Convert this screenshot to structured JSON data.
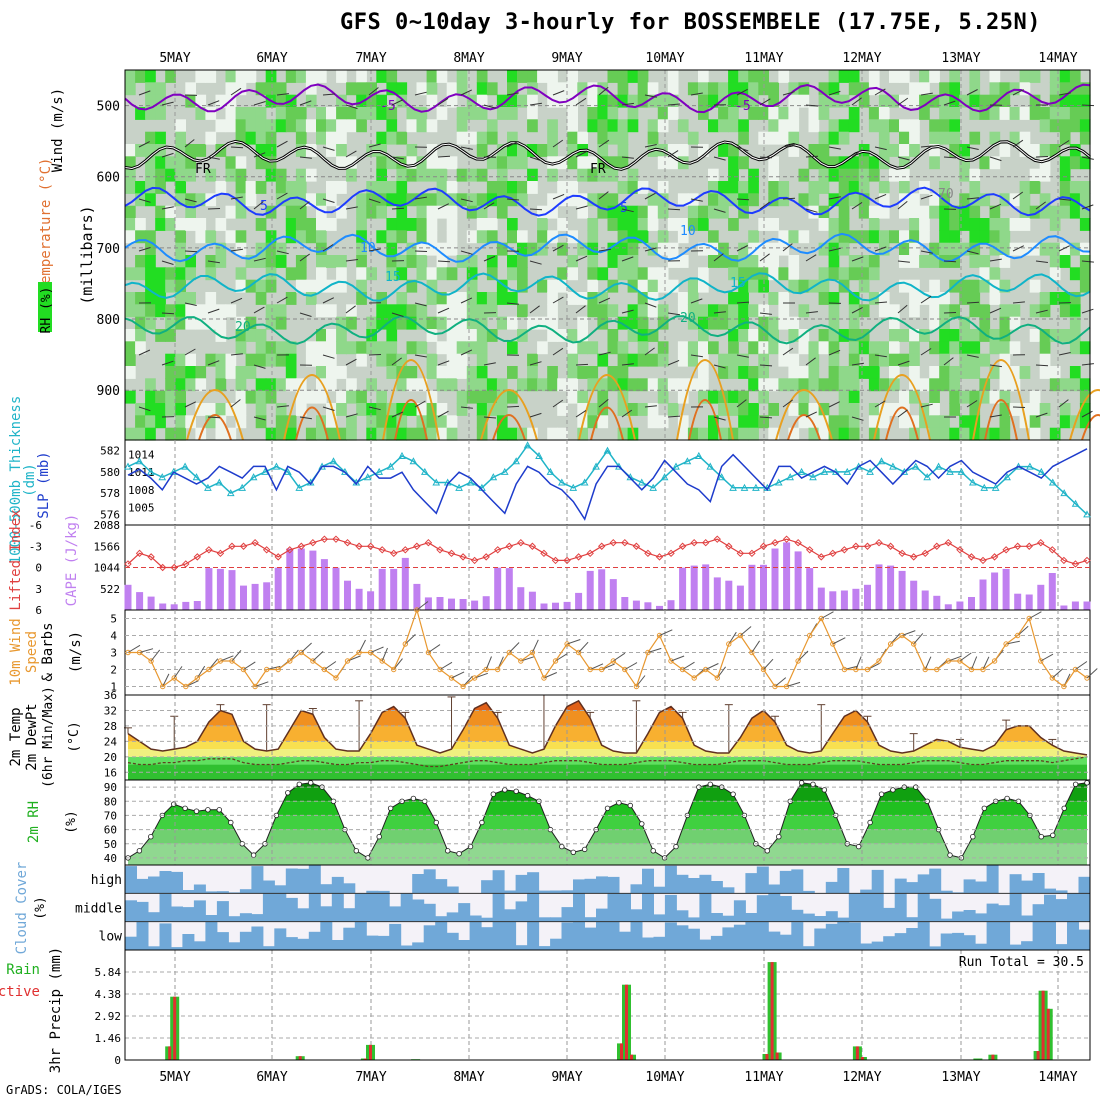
{
  "page": {
    "title": "GFS 0~10day 3-hourly for BOSSEMBELE (17.75E, 5.25N)",
    "credit": "GrADS: COLA/IGES"
  },
  "chart_data": [
    {
      "type": "heatmap",
      "panel": "upper-air",
      "x_dates": [
        "5MAY",
        "6MAY",
        "7MAY",
        "8MAY",
        "9MAY",
        "10MAY",
        "11MAY",
        "12MAY",
        "13MAY",
        "14MAY"
      ],
      "ylabel": "(millibars)",
      "yticks": [
        "500",
        "600",
        "700",
        "800",
        "900"
      ],
      "ylim": [
        970,
        450
      ],
      "legend_labels": [
        "Wind (m/s)",
        "Temperature (°C)",
        "RH (%)"
      ],
      "contour_labels": [
        "-5",
        "-5",
        "FR",
        "FR",
        "5",
        "5",
        "10",
        "10",
        "15",
        "15",
        "20",
        "20",
        "70"
      ],
      "isotherms": [
        {
          "temp": -5,
          "pressure": 490,
          "color": "#8000c0"
        },
        {
          "temp": 0,
          "pressure": 570,
          "color": "#000000"
        },
        {
          "temp": 5,
          "pressure": 635,
          "color": "#1e3cff"
        },
        {
          "temp": 10,
          "pressure": 700,
          "color": "#1e8cff"
        },
        {
          "temp": 15,
          "pressure": 755,
          "color": "#10b4c8"
        },
        {
          "temp": 20,
          "pressure": 815,
          "color": "#10b080"
        }
      ]
    },
    {
      "type": "line",
      "panel": "thickness-slp",
      "ylabel_left": "1000-500mb Thickness (dm)",
      "ylabel_right": "SLP (mb)",
      "left_ticks": [
        "582",
        "580",
        "578",
        "576"
      ],
      "right_ticks": [
        "1014",
        "1011",
        "1008",
        "1005"
      ],
      "series": [
        {
          "name": "SLP (mb)",
          "color": "#1e3ccc",
          "values": [
            1010.5,
            1011.5,
            1010,
            1008,
            1011,
            1010,
            1009,
            1010,
            1012,
            1011,
            1010,
            1012,
            1012,
            1008,
            1012,
            1011,
            1009,
            1012,
            1012,
            1011,
            1009,
            1012,
            1010,
            1010,
            1011,
            1008,
            1006,
            1004,
            1009,
            1011,
            1010,
            1008,
            1006,
            1004,
            1009,
            1012,
            1011,
            1009,
            1008,
            1006,
            1003,
            1009,
            1012,
            1012,
            1010,
            1008,
            1010,
            1013,
            1011,
            1009,
            1008,
            1006,
            1012,
            1014,
            1012,
            1010,
            1008,
            1012,
            1012,
            1010,
            1011,
            1012,
            1011,
            1009,
            1012,
            1013,
            1011,
            1009,
            1011,
            1013,
            1012,
            1010,
            1012,
            1013,
            1011,
            1010,
            1009,
            1011,
            1012,
            1011,
            1010,
            1012,
            1013,
            1014,
            1015
          ]
        },
        {
          "name": "Thickness (dm)",
          "color": "#20b4c8",
          "values": [
            580.5,
            581,
            580,
            579.5,
            580,
            580.5,
            579.5,
            578.5,
            579,
            578,
            578.5,
            579.5,
            580,
            580.5,
            580,
            578.5,
            579,
            580.5,
            581,
            580,
            579,
            579.5,
            580,
            580.5,
            581.5,
            581,
            580,
            579,
            579,
            578.5,
            579,
            578.5,
            579.5,
            580,
            581,
            582.5,
            581.5,
            580,
            579,
            578.5,
            579,
            580.5,
            582,
            580.5,
            579.5,
            579,
            578.5,
            579.5,
            580.5,
            581,
            581.5,
            580.5,
            579.5,
            578.5,
            578.5,
            578.5,
            578.5,
            579,
            579.5,
            580,
            579.5,
            580,
            580,
            580,
            580.5,
            580,
            581,
            580.5,
            580,
            580.5,
            579.5,
            580.5,
            580,
            580,
            579,
            578.5,
            578.5,
            579.5,
            580.5,
            580.5,
            580,
            579,
            578,
            577,
            576
          ]
        }
      ]
    },
    {
      "type": "bar",
      "panel": "cape-li",
      "ylabel_left": "Lifted Index",
      "ylabel_right": "CAPE (J/kg)",
      "left_ticks": [
        "-6",
        "-3",
        "0",
        "3",
        "6"
      ],
      "right_ticks": [
        "2088",
        "1566",
        "1044",
        "522"
      ],
      "series": [
        {
          "name": "CAPE (J/kg)",
          "color": "#c080f0",
          "values": [
            620,
            440,
            330,
            160,
            140,
            200,
            220,
            1030,
            1010,
            980,
            600,
            640,
            680,
            1040,
            1510,
            1510,
            1460,
            1250,
            1040,
            720,
            520,
            460,
            1010,
            1010,
            1280,
            640,
            310,
            320,
            280,
            270,
            230,
            340,
            1040,
            1030,
            560,
            450,
            160,
            180,
            200,
            420,
            960,
            1000,
            760,
            320,
            230,
            190,
            100,
            240,
            1040,
            1090,
            1120,
            800,
            720,
            600,
            1110,
            1110,
            1510,
            1660,
            1440,
            1030,
            550,
            460,
            480,
            520,
            620,
            1120,
            1090,
            960,
            720,
            480,
            350,
            140,
            210,
            320,
            750,
            920,
            1010,
            400,
            380,
            620,
            910,
            110,
            210,
            210
          ]
        },
        {
          "name": "Lifted Index",
          "color": "#e04040",
          "values": [
            -0.5,
            -2,
            -1.5,
            0,
            0,
            -0.5,
            -1.5,
            -2.5,
            -2,
            -3,
            -3,
            -3.5,
            -2.5,
            -1.5,
            -2.5,
            -3,
            -3.5,
            -4,
            -4,
            -3.5,
            -3,
            -3,
            -2.5,
            -2,
            -2.5,
            -3,
            -3.5,
            -2.5,
            -2,
            -1.5,
            -1,
            -1.5,
            -2.5,
            -3,
            -3.5,
            -3,
            -2,
            -1,
            -1,
            -1.5,
            -2,
            -3,
            -3.5,
            -3.5,
            -3,
            -2,
            -1.5,
            -2,
            -3,
            -3.5,
            -3.5,
            -4,
            -3,
            -2,
            -2,
            -3,
            -3.5,
            -4,
            -3.5,
            -2.5,
            -1.5,
            -2,
            -2.5,
            -3,
            -3,
            -3.5,
            -3,
            -2,
            -1.5,
            -2,
            -3,
            -3.5,
            -2.5,
            -1.5,
            -1,
            -1.5,
            -2.5,
            -3,
            -3,
            -3.5,
            -2.5,
            -1,
            -0.5,
            -1
          ]
        }
      ]
    },
    {
      "type": "line",
      "panel": "wind10m",
      "ylabel": "10m Wind Speed & Barbs (m/s)",
      "yticks": [
        "5",
        "4",
        "3",
        "2",
        "1"
      ],
      "ylim": [
        0.5,
        5.5
      ],
      "series": [
        {
          "name": "10m Wind Speed (m/s)",
          "color": "#e89830",
          "values": [
            3,
            3,
            2.5,
            1,
            1.5,
            1,
            1.5,
            2,
            2.5,
            2.5,
            2,
            1,
            2,
            2,
            2.5,
            3,
            2.5,
            2,
            1.5,
            2.5,
            3,
            3,
            2.5,
            2,
            3.5,
            5.5,
            3,
            2,
            1.5,
            1,
            1.5,
            2,
            2,
            3,
            2.5,
            3,
            1.5,
            2.5,
            3.5,
            3,
            2,
            2,
            2.5,
            2,
            1,
            3,
            4,
            2.5,
            2,
            1.5,
            2,
            1.5,
            3.5,
            4,
            3,
            2,
            1,
            1,
            2.5,
            4,
            5,
            3.5,
            2,
            2,
            2,
            2.5,
            3.5,
            4,
            3.5,
            2,
            2,
            2.5,
            2.5,
            2,
            2,
            2.5,
            3.5,
            4,
            5,
            2.5,
            1.5,
            1,
            2,
            1.5
          ]
        }
      ]
    },
    {
      "type": "area",
      "panel": "temp2m",
      "ylabel": "2m Temp 2m DewPt (6hr Min/Max) (°C)",
      "yticks": [
        "36",
        "32",
        "28",
        "24",
        "20",
        "16"
      ],
      "ylim": [
        14,
        36
      ],
      "series": [
        {
          "name": "2m Temp (°C)",
          "values": [
            26,
            24,
            22,
            21.5,
            22,
            22.5,
            24,
            29,
            32,
            31,
            24,
            22,
            21.5,
            22,
            27,
            32,
            31,
            25,
            22,
            21.5,
            21.5,
            26,
            31.5,
            33,
            30,
            23,
            22,
            21,
            22,
            27,
            32.5,
            34,
            30,
            23,
            22,
            21,
            22,
            28,
            33,
            34.5,
            30,
            23,
            21.5,
            21,
            21,
            26,
            31.5,
            33,
            30,
            23,
            21.5,
            21,
            21,
            25,
            30,
            32,
            29,
            23,
            21.5,
            21,
            21.5,
            26,
            30.5,
            32,
            29,
            23,
            21.5,
            21,
            21.5,
            23,
            24.5,
            24,
            22.5,
            22,
            21.5,
            23,
            27,
            28,
            28,
            25,
            23,
            21.5,
            21,
            20.5
          ]
        },
        {
          "name": "2m DewPt (°C)",
          "values": [
            18.5,
            18,
            18,
            18.5,
            18.5,
            19,
            19,
            19.5,
            19.5,
            19.5,
            18.5,
            18,
            18,
            18,
            18.5,
            19,
            19,
            18.5,
            18,
            18,
            18.5,
            18.5,
            19,
            19,
            18.5,
            18,
            17.5,
            17.5,
            18,
            18.5,
            19,
            19,
            18.5,
            18,
            18,
            18,
            18.5,
            19,
            19,
            19,
            18.5,
            18,
            18,
            18,
            18.5,
            19,
            19,
            19,
            18.5,
            18,
            18,
            18,
            18.5,
            19,
            19,
            19,
            18.5,
            18,
            18,
            18,
            18.5,
            19,
            19,
            19,
            18.5,
            18,
            18,
            18,
            18.5,
            19,
            19,
            19,
            18.5,
            18,
            18,
            18.5,
            19,
            19,
            19,
            19,
            18.5,
            19,
            19.5,
            20
          ]
        }
      ]
    },
    {
      "type": "area",
      "panel": "rh2m",
      "ylabel": "2m RH (%)",
      "yticks": [
        "90",
        "80",
        "70",
        "60",
        "50",
        "40"
      ],
      "ylim": [
        35,
        95
      ],
      "series": [
        {
          "name": "2m RH (%)",
          "values": [
            40,
            45,
            55,
            70,
            78,
            75,
            73,
            74,
            74,
            65,
            50,
            42,
            50,
            70,
            86,
            92,
            93,
            90,
            80,
            60,
            45,
            40,
            55,
            75,
            80,
            82,
            80,
            65,
            45,
            43,
            48,
            65,
            85,
            88,
            87,
            84,
            80,
            60,
            48,
            44,
            46,
            60,
            75,
            79,
            77,
            64,
            45,
            40,
            48,
            70,
            90,
            92,
            90,
            85,
            70,
            50,
            45,
            55,
            80,
            93,
            92,
            88,
            70,
            50,
            48,
            65,
            85,
            88,
            90,
            90,
            80,
            60,
            42,
            40,
            55,
            75,
            80,
            82,
            80,
            70,
            55,
            56,
            75,
            92,
            93
          ]
        }
      ]
    },
    {
      "type": "heatmap",
      "panel": "cloud-cover",
      "ylabel": "Cloud Cover (%)",
      "yticks": [
        "high",
        "middle",
        "low"
      ]
    },
    {
      "type": "bar",
      "panel": "precip",
      "ylabel": "3hr Precip (mm)",
      "ylabel_left_extra": [
        "Total / Rain",
        "Convective"
      ],
      "yticks": [
        "5.84",
        "4.38",
        "2.92",
        "1.46",
        "0"
      ],
      "ylim": [
        0,
        7.3
      ],
      "annotation": "Run Total = 30.5",
      "series": [
        {
          "name": "Total / Rain (mm)",
          "color": "#30c030",
          "bars": [
            {
              "x": 8,
              "value": 0.9
            },
            {
              "x": 9,
              "value": 4.2
            },
            {
              "x": 34,
              "value": 0.25
            },
            {
              "x": 47,
              "value": 0.1
            },
            {
              "x": 48,
              "value": 1.0
            },
            {
              "x": 57,
              "value": 0.05
            },
            {
              "x": 98,
              "value": 1.1
            },
            {
              "x": 99,
              "value": 5.0
            },
            {
              "x": 100,
              "value": 0.35
            },
            {
              "x": 127,
              "value": 0.4
            },
            {
              "x": 128,
              "value": 6.5
            },
            {
              "x": 129,
              "value": 0.5
            },
            {
              "x": 145,
              "value": 0.9
            },
            {
              "x": 146,
              "value": 0.2
            },
            {
              "x": 169,
              "value": 0.1
            },
            {
              "x": 172,
              "value": 0.35
            },
            {
              "x": 181,
              "value": 0.6
            },
            {
              "x": 182,
              "value": 4.6
            },
            {
              "x": 183,
              "value": 3.4
            }
          ]
        },
        {
          "name": "Convective (mm)",
          "color": "#e03030",
          "bars": [
            {
              "x": 8,
              "value": 0.9
            },
            {
              "x": 9,
              "value": 4.2
            },
            {
              "x": 34,
              "value": 0.25
            },
            {
              "x": 47,
              "value": 0.1
            },
            {
              "x": 48,
              "value": 1.0
            },
            {
              "x": 98,
              "value": 1.1
            },
            {
              "x": 99,
              "value": 5.0
            },
            {
              "x": 100,
              "value": 0.35
            },
            {
              "x": 127,
              "value": 0.4
            },
            {
              "x": 128,
              "value": 6.5
            },
            {
              "x": 129,
              "value": 0.5
            },
            {
              "x": 145,
              "value": 0.9
            },
            {
              "x": 146,
              "value": 0.2
            },
            {
              "x": 172,
              "value": 0.35
            },
            {
              "x": 181,
              "value": 0.6
            },
            {
              "x": 182,
              "value": 4.6
            },
            {
              "x": 183,
              "value": 3.4
            }
          ]
        }
      ]
    }
  ]
}
